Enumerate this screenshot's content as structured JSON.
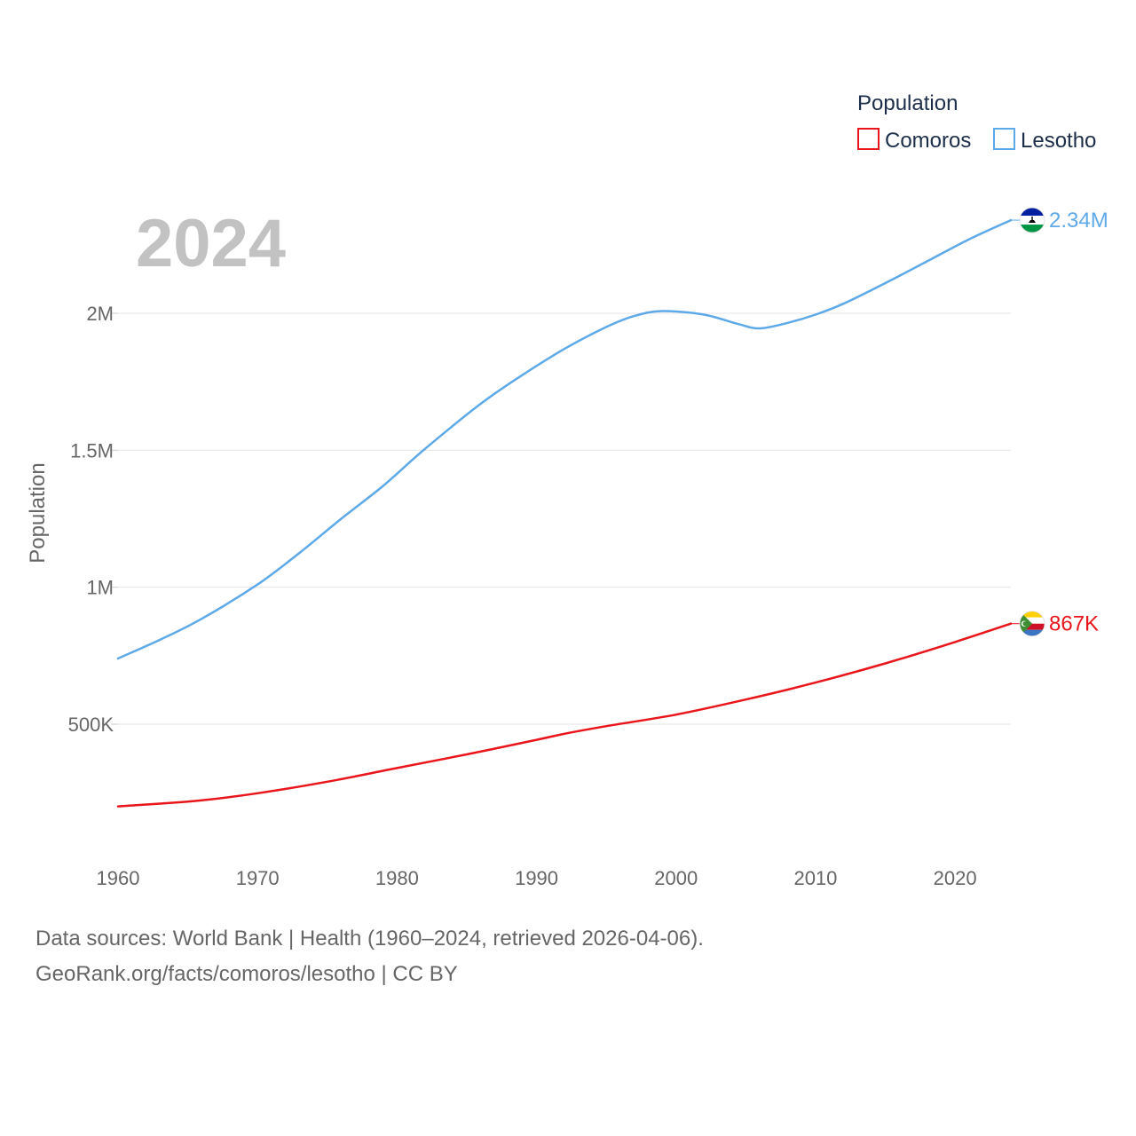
{
  "chart_data": {
    "type": "line",
    "current_year": "2024",
    "ylabel": "Population",
    "xlabel": "",
    "xlim": [
      1960,
      2024
    ],
    "ylim": [
      200000,
      2400000
    ],
    "x_ticks": [
      1960,
      1970,
      1980,
      1990,
      2000,
      2010,
      2020
    ],
    "y_ticks": [
      {
        "value": 500000,
        "label": "500K"
      },
      {
        "value": 1000000,
        "label": "1M"
      },
      {
        "value": 1500000,
        "label": "1.5M"
      },
      {
        "value": 2000000,
        "label": "2M"
      }
    ],
    "grid": true,
    "legend": {
      "title": "Population",
      "placement": "top-right",
      "entries": [
        {
          "name": "Comoros",
          "color": "#e8161b"
        },
        {
          "name": "Lesotho",
          "color": "#5ea9e8"
        }
      ]
    },
    "series": [
      {
        "name": "Comoros",
        "color": "#e8161b",
        "end_label": "867K",
        "flag_icon": "comoros-flag-icon",
        "points": [
          [
            1960,
            200000
          ],
          [
            1963,
            210000
          ],
          [
            1966,
            222000
          ],
          [
            1970,
            248000
          ],
          [
            1975,
            290000
          ],
          [
            1980,
            340000
          ],
          [
            1985,
            390000
          ],
          [
            1990,
            443000
          ],
          [
            1992,
            465000
          ],
          [
            1995,
            493000
          ],
          [
            2000,
            535000
          ],
          [
            2005,
            590000
          ],
          [
            2010,
            652000
          ],
          [
            2015,
            722000
          ],
          [
            2020,
            800000
          ],
          [
            2024,
            867000
          ]
        ]
      },
      {
        "name": "Lesotho",
        "color": "#5ea9e8",
        "end_label": "2.34M",
        "flag_icon": "lesotho-flag-icon",
        "points": [
          [
            1960,
            740000
          ],
          [
            1963,
            808000
          ],
          [
            1966,
            885000
          ],
          [
            1970,
            1010000
          ],
          [
            1973,
            1125000
          ],
          [
            1976,
            1250000
          ],
          [
            1979,
            1370000
          ],
          [
            1982,
            1505000
          ],
          [
            1986,
            1670000
          ],
          [
            1989,
            1775000
          ],
          [
            1992,
            1870000
          ],
          [
            1995,
            1950000
          ],
          [
            1997,
            1990000
          ],
          [
            1999,
            2008000
          ],
          [
            2002,
            1995000
          ],
          [
            2004.5,
            1960000
          ],
          [
            2006,
            1945000
          ],
          [
            2008,
            1965000
          ],
          [
            2010,
            1995000
          ],
          [
            2012,
            2035000
          ],
          [
            2015,
            2110000
          ],
          [
            2018,
            2190000
          ],
          [
            2021,
            2270000
          ],
          [
            2024,
            2340000
          ]
        ]
      }
    ]
  },
  "footer": {
    "source_line": "Data sources: World Bank | Health (1960–2024, retrieved 2026-04-06).",
    "credit_line": "GeoRank.org/facts/comoros/lesotho | CC BY"
  }
}
